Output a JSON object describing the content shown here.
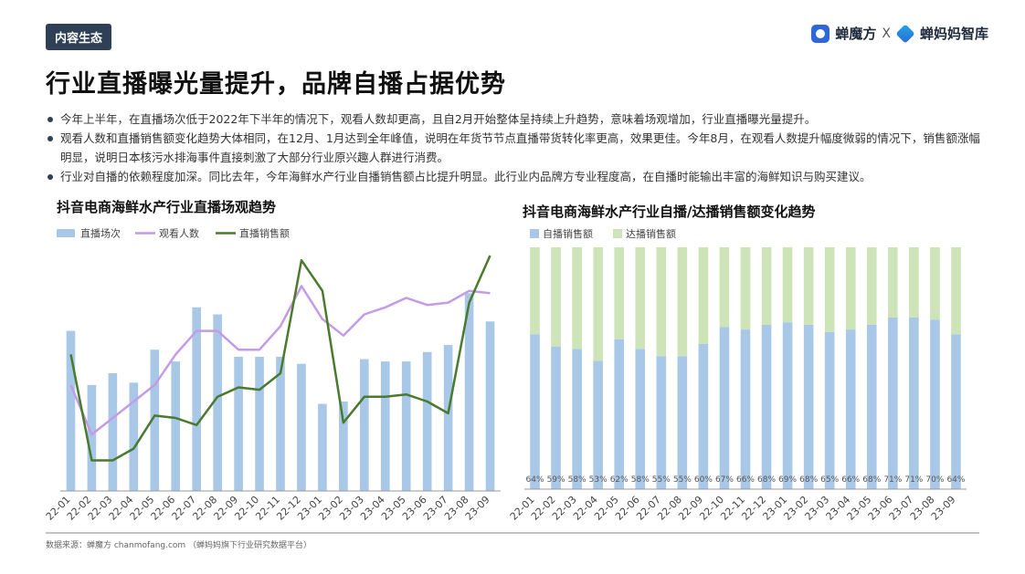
{
  "tag": "内容生态",
  "logo": {
    "brand1": "蝉魔方",
    "sep": "X",
    "brand2": "蝉妈妈智库"
  },
  "title": "行业直播曝光量提升，品牌自播占据优势",
  "bullets": [
    "今年上半年，在直播场次低于2022年下半年的情况下，观看人数却更高，且自2月开始整体呈持续上升趋势，意味着场观增加，行业直播曝光量提升。",
    "观看人数和直播销售额变化趋势大体相同，在12月、1月达到全年峰值，说明在年货节节点直播带货转化率更高，效果更佳。今年8月，在观看人数提升幅度微弱的情况下，销售额涨幅明显，说明日本核污水排海事件直接刺激了大部分行业原兴趣人群进行消费。",
    "行业对自播的依赖程度加深。同比去年，今年海鲜水产行业自播销售额占比提升明显。此行业内品牌方专业程度高，在自播时能输出丰富的海鲜知识与购买建议。"
  ],
  "source": "数据来源：蝉魔方 chanmofang.com （蝉妈妈旗下行业研究数据平台）",
  "colors": {
    "bar": "#a9c8e8",
    "line_viewers": "#c39be6",
    "line_sales": "#4a7a2e",
    "self": "#a9c8e8",
    "kol": "#cde3b8",
    "axis": "#999999"
  },
  "chart_data": [
    {
      "type": "bar+line",
      "title": "抖音电商海鲜水产行业直播场观趋势",
      "categories": [
        "22-01",
        "22-02",
        "22-03",
        "22-04",
        "22-05",
        "22-06",
        "22-07",
        "22-08",
        "22-09",
        "22-10",
        "22-11",
        "22-12",
        "23-01",
        "23-02",
        "23-03",
        "23-04",
        "23-05",
        "23-06",
        "23-07",
        "23-08",
        "23-09"
      ],
      "series": [
        {
          "name": "直播场次",
          "kind": "bar",
          "values": [
            68,
            45,
            50,
            46,
            60,
            55,
            78,
            75,
            57,
            57,
            57,
            54,
            37,
            38,
            56,
            55,
            55,
            59,
            62,
            84,
            72
          ]
        },
        {
          "name": "观看人数",
          "kind": "line",
          "values": [
            45,
            24,
            31,
            38,
            45,
            58,
            68,
            68,
            60,
            60,
            70,
            87,
            73,
            66,
            75,
            78,
            82,
            79,
            80,
            85,
            84
          ]
        },
        {
          "name": "直播销售额",
          "kind": "line",
          "values": [
            58,
            13,
            13,
            18,
            32,
            31,
            28,
            40,
            44,
            43,
            50,
            98,
            85,
            29,
            40,
            40,
            41,
            38,
            33,
            80,
            100
          ]
        }
      ],
      "ylim": [
        0,
        100
      ]
    },
    {
      "type": "stacked-bar-100",
      "title": "抖音电商海鲜水产行业自播/达播销售额变化趋势",
      "categories": [
        "22-01",
        "22-02",
        "22-03",
        "22-04",
        "22-05",
        "22-06",
        "22-07",
        "22-08",
        "22-09",
        "22-10",
        "22-11",
        "22-12",
        "23-01",
        "23-02",
        "23-03",
        "23-04",
        "23-05",
        "23-06",
        "23-07",
        "23-08",
        "23-09"
      ],
      "series": [
        {
          "name": "自播销售额",
          "values": [
            64,
            59,
            58,
            53,
            62,
            58,
            55,
            55,
            60,
            67,
            66,
            68,
            69,
            68,
            65,
            66,
            68,
            71,
            71,
            70,
            64
          ]
        },
        {
          "name": "达播销售额",
          "values": [
            36,
            41,
            42,
            47,
            38,
            42,
            45,
            45,
            40,
            33,
            34,
            32,
            31,
            32,
            35,
            34,
            32,
            29,
            29,
            30,
            36
          ]
        }
      ],
      "data_labels": [
        "64%",
        "59%",
        "58%",
        "53%",
        "62%",
        "58%",
        "55%",
        "55%",
        "60%",
        "67%",
        "66%",
        "68%",
        "69%",
        "68%",
        "65%",
        "66%",
        "68%",
        "71%",
        "71%",
        "70%",
        "64%"
      ],
      "ylim": [
        0,
        100
      ]
    }
  ]
}
